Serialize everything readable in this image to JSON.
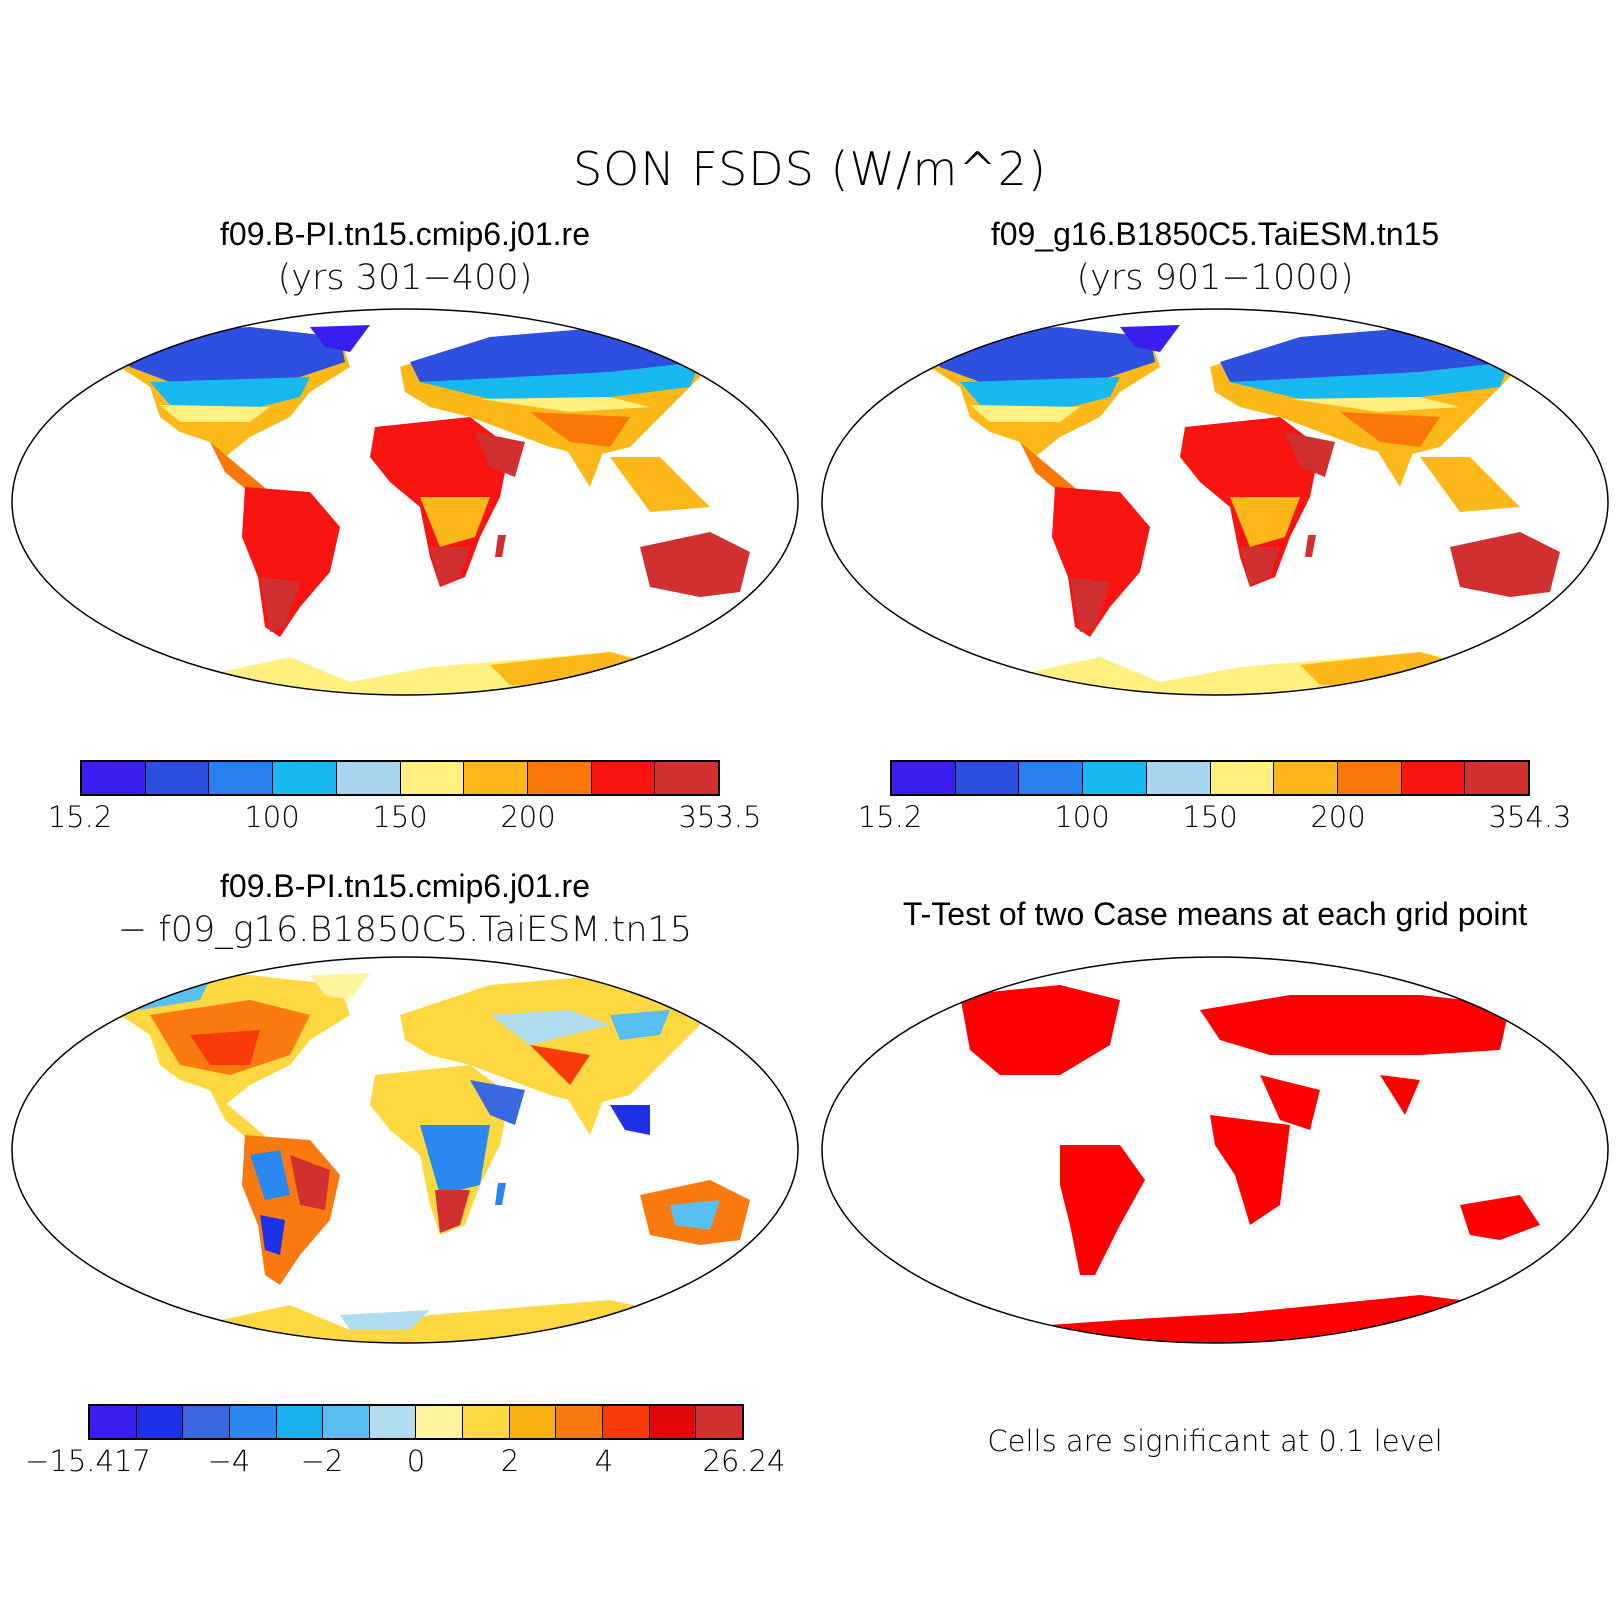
{
  "figure": {
    "title": "SON FSDS (W/m^2)"
  },
  "panels": {
    "top_left": {
      "title": "f09.B-PI.tn15.cmip6.j01.re",
      "subtitle": "(yrs 301−400)"
    },
    "top_right": {
      "title": "f09_g16.B1850C5.TaiESM.tn15",
      "subtitle": "(yrs 901−1000)"
    },
    "bottom_left": {
      "title": "f09.B-PI.tn15.cmip6.j01.re",
      "subtitle": "− f09_g16.B1850C5.TaiESM.tn15"
    },
    "bottom_right": {
      "title": "T-Test of two Case means at each grid point",
      "note": "Cells are significant at 0.1 level"
    }
  },
  "colorbars": {
    "top_left": {
      "colors": [
        "#3a1ef0",
        "#2e50e0",
        "#2a80f0",
        "#18b8f0",
        "#a8d4f0",
        "#fff080",
        "#fbb818",
        "#fb7808",
        "#f81410",
        "#d03030"
      ],
      "ticks": [
        "15.2",
        "100",
        "150",
        "200",
        "353.5"
      ]
    },
    "top_right": {
      "colors": [
        "#3a1ef0",
        "#2e50e0",
        "#2a80f0",
        "#18b8f0",
        "#a8d4f0",
        "#fff080",
        "#fbb818",
        "#fb7808",
        "#f81410",
        "#d03030"
      ],
      "ticks": [
        "15.2",
        "100",
        "150",
        "200",
        "354.3"
      ]
    },
    "bottom_left": {
      "colors": [
        "#3a1ef0",
        "#1e30e8",
        "#3a68e0",
        "#2a88f0",
        "#18b0f0",
        "#58c0f0",
        "#b0dcf0",
        "#fff4a0",
        "#fdd840",
        "#fbb010",
        "#fb7a10",
        "#f83a08",
        "#e00808",
        "#d03030"
      ],
      "ticks": [
        "−15.417",
        "−4",
        "−2",
        "0",
        "2",
        "4",
        "26.24"
      ]
    }
  },
  "significance_color": "#ff0000"
}
